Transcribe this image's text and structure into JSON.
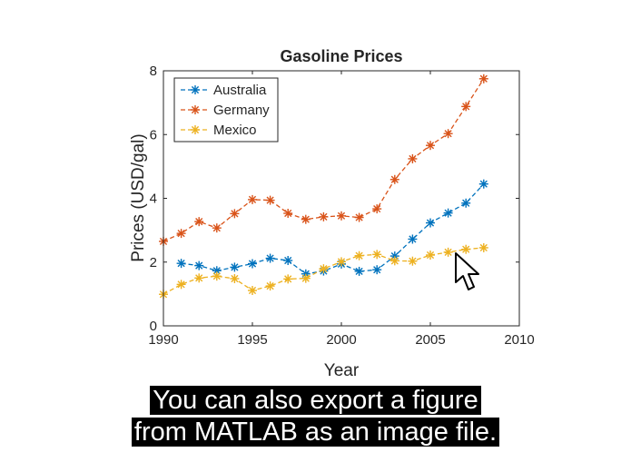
{
  "chart_data": {
    "type": "line",
    "title": "Gasoline Prices",
    "xlabel": "Year",
    "ylabel": "Prices (USD/gal)",
    "xlim": [
      1990,
      2010
    ],
    "ylim": [
      0,
      8
    ],
    "xticks": [
      1990,
      1995,
      2000,
      2005,
      2010
    ],
    "yticks": [
      0,
      2,
      4,
      6,
      8
    ],
    "grid": false,
    "legend_position": "top-left",
    "x": [
      1990,
      1991,
      1992,
      1993,
      1994,
      1995,
      1996,
      1997,
      1998,
      1999,
      2000,
      2001,
      2002,
      2003,
      2004,
      2005,
      2006,
      2007,
      2008
    ],
    "series": [
      {
        "name": "Australia",
        "color": "#0072BD",
        "marker": "asterisk",
        "line_style": "dashed",
        "x": [
          1991,
          1992,
          1993,
          1994,
          1995,
          1996,
          1997,
          1998,
          1999,
          2000,
          2001,
          2002,
          2003,
          2004,
          2005,
          2006,
          2007,
          2008
        ],
        "values": [
          1.96,
          1.89,
          1.73,
          1.84,
          1.95,
          2.12,
          2.05,
          1.63,
          1.72,
          1.94,
          1.71,
          1.76,
          2.19,
          2.72,
          3.23,
          3.54,
          3.85,
          4.45
        ]
      },
      {
        "name": "Germany",
        "color": "#D95319",
        "marker": "asterisk",
        "line_style": "dashed",
        "x": [
          1990,
          1991,
          1992,
          1993,
          1994,
          1995,
          1996,
          1997,
          1998,
          1999,
          2000,
          2001,
          2002,
          2003,
          2004,
          2005,
          2006,
          2007,
          2008
        ],
        "values": [
          2.65,
          2.9,
          3.27,
          3.07,
          3.52,
          3.96,
          3.94,
          3.53,
          3.34,
          3.42,
          3.45,
          3.4,
          3.67,
          4.59,
          5.24,
          5.66,
          6.03,
          6.88,
          7.75
        ]
      },
      {
        "name": "Mexico",
        "color": "#EDB120",
        "marker": "asterisk",
        "line_style": "dashed",
        "x": [
          1990,
          1991,
          1992,
          1993,
          1994,
          1995,
          1996,
          1997,
          1998,
          1999,
          2000,
          2001,
          2002,
          2003,
          2004,
          2005,
          2006,
          2007,
          2008
        ],
        "values": [
          0.99,
          1.3,
          1.5,
          1.56,
          1.48,
          1.11,
          1.25,
          1.47,
          1.49,
          1.79,
          2.01,
          2.2,
          2.24,
          2.04,
          2.03,
          2.22,
          2.31,
          2.4,
          2.45
        ]
      }
    ]
  },
  "caption": {
    "line1": "You can also export a figure",
    "line2": "from MATLAB as an image file."
  },
  "cursor": {
    "icon": "mouse-pointer-icon"
  }
}
